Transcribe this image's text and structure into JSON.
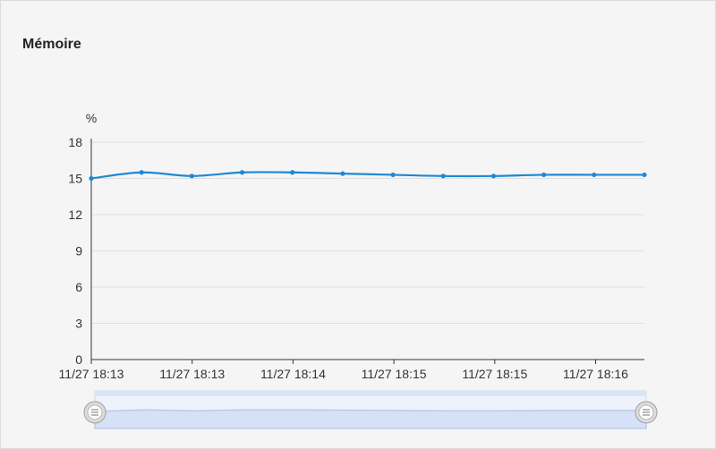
{
  "panel": {
    "title": "Mémoire"
  },
  "colors": {
    "line": "#1e88d4",
    "grid": "#e0e0e0",
    "axis": "#333333",
    "zoom_fill": "#d6e0f7",
    "zoom_line": "#a9bde6"
  },
  "chart_data": {
    "type": "line",
    "title": "",
    "xlabel": "",
    "ylabel": "%",
    "ylim": [
      0,
      18
    ],
    "yticks": [
      0,
      3,
      6,
      9,
      12,
      15,
      18
    ],
    "x_tick_labels": [
      "11/27 18:13",
      "11/27 18:13",
      "11/27 18:14",
      "11/27 18:15",
      "11/27 18:15",
      "11/27 18:16"
    ],
    "grid": true,
    "legend": "none",
    "series": [
      {
        "values": [
          15.0,
          15.5,
          15.2,
          15.5,
          15.5,
          15.4,
          15.3,
          15.2,
          15.2,
          15.3,
          15.3,
          15.3
        ]
      }
    ]
  },
  "zoom": {
    "start": 0,
    "end": 100,
    "handle_icon": "grip-lines-icon"
  }
}
